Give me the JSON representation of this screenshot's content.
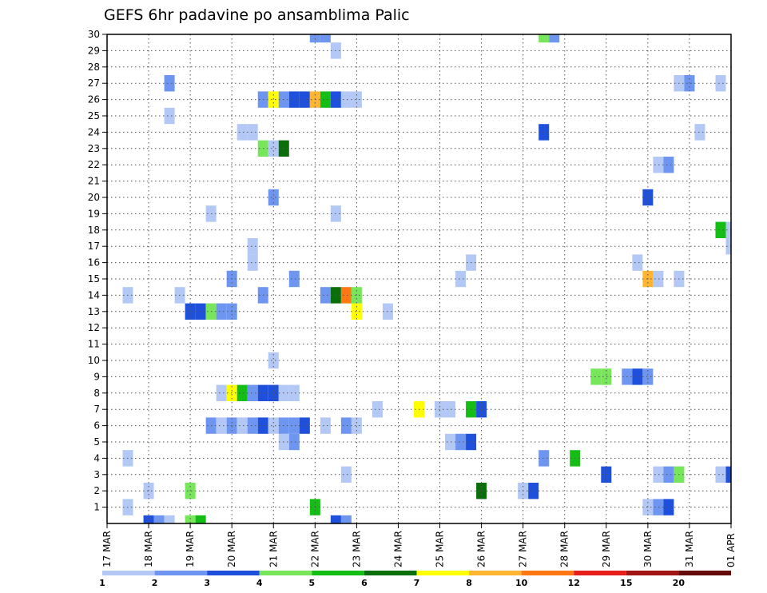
{
  "chart_data": {
    "type": "heatmap",
    "title": "GEFS 6hr padavine po ansamblima Palic",
    "y_ticks": [
      "1",
      "2",
      "3",
      "4",
      "5",
      "6",
      "7",
      "8",
      "9",
      "10",
      "11",
      "12",
      "13",
      "14",
      "15",
      "16",
      "17",
      "18",
      "19",
      "20",
      "21",
      "22",
      "23",
      "24",
      "25",
      "26",
      "27",
      "28",
      "29",
      "30"
    ],
    "x_ticks": [
      "17 MAR",
      "18 MAR",
      "19 MAR",
      "20 MAR",
      "21 MAR",
      "22 MAR",
      "23 MAR",
      "24 MAR",
      "25 MAR",
      "26 MAR",
      "27 MAR",
      "28 MAR",
      "29 MAR",
      "30 MAR",
      "31 MAR",
      "01 APR"
    ],
    "x_range_days": [
      0,
      15
    ],
    "y_range": [
      0,
      30
    ],
    "grid": true,
    "legend": {
      "placement": "bottom",
      "levels": [
        "1",
        "2",
        "3",
        "4",
        "5",
        "6",
        "7",
        "8",
        "10",
        "12",
        "15",
        "20"
      ],
      "colors": [
        "#b4c8f5",
        "#6e96f0",
        "#1e50dc",
        "#78e65a",
        "#14be14",
        "#0a6e0a",
        "#ffff00",
        "#ffb432",
        "#ff7814",
        "#e61e1e",
        "#a01414",
        "#640a0a"
      ]
    },
    "cells": [
      {
        "m": 0,
        "t": 1.0,
        "c": 2
      },
      {
        "m": 0,
        "t": 1.25,
        "c": 1
      },
      {
        "m": 0,
        "t": 1.5,
        "c": 0
      },
      {
        "m": 0,
        "t": 2.0,
        "c": 3
      },
      {
        "m": 0,
        "t": 2.25,
        "c": 4
      },
      {
        "m": 0,
        "t": 5.75,
        "c": 1
      },
      {
        "m": 0,
        "t": 5.5,
        "c": 2
      },
      {
        "m": 1,
        "t": 0.5,
        "c": 0
      },
      {
        "m": 1,
        "t": 13.0,
        "c": 0
      },
      {
        "m": 1,
        "t": 13.25,
        "c": 1
      },
      {
        "m": 1,
        "t": 13.5,
        "c": 2
      },
      {
        "m": 1,
        "t": 5.0,
        "c": 4
      },
      {
        "m": 2,
        "t": 1.0,
        "c": 0
      },
      {
        "m": 2,
        "t": 2.0,
        "c": 3
      },
      {
        "m": 2,
        "t": 9.0,
        "c": 5
      },
      {
        "m": 2,
        "t": 10.0,
        "c": 0
      },
      {
        "m": 2,
        "t": 10.25,
        "c": 2
      },
      {
        "m": 3,
        "t": 5.75,
        "c": 0
      },
      {
        "m": 3,
        "t": 12.0,
        "c": 2
      },
      {
        "m": 3,
        "t": 13.25,
        "c": 0
      },
      {
        "m": 3,
        "t": 13.5,
        "c": 1
      },
      {
        "m": 3,
        "t": 13.75,
        "c": 3
      },
      {
        "m": 3,
        "t": 14.75,
        "c": 0
      },
      {
        "m": 3,
        "t": 15.0,
        "c": 2
      },
      {
        "m": 4,
        "t": 0.5,
        "c": 0
      },
      {
        "m": 4,
        "t": 10.5,
        "c": 1
      },
      {
        "m": 4,
        "t": 11.25,
        "c": 4
      },
      {
        "m": 5,
        "t": 4.25,
        "c": 0
      },
      {
        "m": 5,
        "t": 4.5,
        "c": 1
      },
      {
        "m": 5,
        "t": 8.25,
        "c": 0
      },
      {
        "m": 5,
        "t": 8.5,
        "c": 1
      },
      {
        "m": 5,
        "t": 8.75,
        "c": 2
      },
      {
        "m": 6,
        "t": 2.5,
        "c": 1
      },
      {
        "m": 6,
        "t": 2.75,
        "c": 0
      },
      {
        "m": 6,
        "t": 3.0,
        "c": 1
      },
      {
        "m": 6,
        "t": 3.25,
        "c": 0
      },
      {
        "m": 6,
        "t": 3.5,
        "c": 1
      },
      {
        "m": 6,
        "t": 3.75,
        "c": 2
      },
      {
        "m": 6,
        "t": 4.0,
        "c": 0
      },
      {
        "m": 6,
        "t": 4.25,
        "c": 1
      },
      {
        "m": 6,
        "t": 4.5,
        "c": 1
      },
      {
        "m": 6,
        "t": 4.75,
        "c": 2
      },
      {
        "m": 6,
        "t": 5.25,
        "c": 0
      },
      {
        "m": 6,
        "t": 5.75,
        "c": 1
      },
      {
        "m": 6,
        "t": 6.0,
        "c": 0
      },
      {
        "m": 7,
        "t": 6.5,
        "c": 0
      },
      {
        "m": 7,
        "t": 7.5,
        "c": 6
      },
      {
        "m": 7,
        "t": 8.0,
        "c": 0
      },
      {
        "m": 7,
        "t": 8.25,
        "c": 0
      },
      {
        "m": 7,
        "t": 8.75,
        "c": 4
      },
      {
        "m": 7,
        "t": 9.0,
        "c": 2
      },
      {
        "m": 8,
        "t": 2.75,
        "c": 0
      },
      {
        "m": 8,
        "t": 3.0,
        "c": 6
      },
      {
        "m": 8,
        "t": 3.25,
        "c": 4
      },
      {
        "m": 8,
        "t": 3.5,
        "c": 1
      },
      {
        "m": 8,
        "t": 3.75,
        "c": 2
      },
      {
        "m": 8,
        "t": 4.0,
        "c": 2
      },
      {
        "m": 8,
        "t": 4.25,
        "c": 0
      },
      {
        "m": 8,
        "t": 4.5,
        "c": 0
      },
      {
        "m": 9,
        "t": 11.75,
        "c": 3
      },
      {
        "m": 9,
        "t": 12.0,
        "c": 3
      },
      {
        "m": 9,
        "t": 12.5,
        "c": 1
      },
      {
        "m": 9,
        "t": 12.75,
        "c": 2
      },
      {
        "m": 9,
        "t": 13.0,
        "c": 1
      },
      {
        "m": 10,
        "t": 4.0,
        "c": 0
      },
      {
        "m": 13,
        "t": 2.0,
        "c": 2
      },
      {
        "m": 13,
        "t": 2.25,
        "c": 2
      },
      {
        "m": 13,
        "t": 2.5,
        "c": 3
      },
      {
        "m": 13,
        "t": 2.75,
        "c": 1
      },
      {
        "m": 13,
        "t": 3.0,
        "c": 1
      },
      {
        "m": 13,
        "t": 6.0,
        "c": 6
      },
      {
        "m": 13,
        "t": 6.75,
        "c": 0
      },
      {
        "m": 14,
        "t": 0.5,
        "c": 0
      },
      {
        "m": 14,
        "t": 3.75,
        "c": 1
      },
      {
        "m": 14,
        "t": 5.25,
        "c": 1
      },
      {
        "m": 14,
        "t": 5.5,
        "c": 5
      },
      {
        "m": 14,
        "t": 5.75,
        "c": 8
      },
      {
        "m": 14,
        "t": 6.0,
        "c": 3
      },
      {
        "m": 14,
        "t": 1.75,
        "c": 0
      },
      {
        "m": 15,
        "t": 4.5,
        "c": 1
      },
      {
        "m": 15,
        "t": 3.0,
        "c": 1
      },
      {
        "m": 15,
        "t": 8.5,
        "c": 0
      },
      {
        "m": 15,
        "t": 13.0,
        "c": 7
      },
      {
        "m": 15,
        "t": 13.25,
        "c": 0
      },
      {
        "m": 15,
        "t": 13.75,
        "c": 0
      },
      {
        "m": 16,
        "t": 3.5,
        "c": 0
      },
      {
        "m": 16,
        "t": 8.75,
        "c": 0
      },
      {
        "m": 16,
        "t": 12.75,
        "c": 0
      },
      {
        "m": 17,
        "t": 3.5,
        "c": 0
      },
      {
        "m": 17,
        "t": 15.0,
        "c": 0
      },
      {
        "m": 18,
        "t": 14.75,
        "c": 4
      },
      {
        "m": 18,
        "t": 15.0,
        "c": 0
      },
      {
        "m": 19,
        "t": 2.5,
        "c": 0
      },
      {
        "m": 19,
        "t": 5.5,
        "c": 0
      },
      {
        "m": 20,
        "t": 4.0,
        "c": 1
      },
      {
        "m": 20,
        "t": 13.0,
        "c": 2
      },
      {
        "m": 22,
        "t": 13.25,
        "c": 0
      },
      {
        "m": 22,
        "t": 13.5,
        "c": 1
      },
      {
        "m": 23,
        "t": 3.75,
        "c": 3
      },
      {
        "m": 23,
        "t": 4.0,
        "c": 0
      },
      {
        "m": 23,
        "t": 4.25,
        "c": 5
      },
      {
        "m": 24,
        "t": 3.25,
        "c": 0
      },
      {
        "m": 24,
        "t": 3.5,
        "c": 0
      },
      {
        "m": 24,
        "t": 10.5,
        "c": 2
      },
      {
        "m": 24,
        "t": 14.25,
        "c": 0
      },
      {
        "m": 25,
        "t": 1.5,
        "c": 0
      },
      {
        "m": 26,
        "t": 3.75,
        "c": 1
      },
      {
        "m": 26,
        "t": 4.0,
        "c": 6
      },
      {
        "m": 26,
        "t": 4.25,
        "c": 1
      },
      {
        "m": 26,
        "t": 4.5,
        "c": 2
      },
      {
        "m": 26,
        "t": 4.75,
        "c": 2
      },
      {
        "m": 26,
        "t": 5.0,
        "c": 7
      },
      {
        "m": 26,
        "t": 5.25,
        "c": 4
      },
      {
        "m": 26,
        "t": 5.5,
        "c": 2
      },
      {
        "m": 26,
        "t": 5.75,
        "c": 0
      },
      {
        "m": 26,
        "t": 6.0,
        "c": 0
      },
      {
        "m": 27,
        "t": 1.5,
        "c": 1
      },
      {
        "m": 27,
        "t": 13.75,
        "c": 0
      },
      {
        "m": 27,
        "t": 14.0,
        "c": 1
      },
      {
        "m": 27,
        "t": 14.75,
        "c": 0
      },
      {
        "m": 29,
        "t": 5.5,
        "c": 0
      },
      {
        "m": 30,
        "t": 5.0,
        "c": 1
      },
      {
        "m": 30,
        "t": 5.25,
        "c": 1
      },
      {
        "m": 30,
        "t": 10.5,
        "c": 3
      },
      {
        "m": 30,
        "t": 10.75,
        "c": 1
      }
    ]
  }
}
